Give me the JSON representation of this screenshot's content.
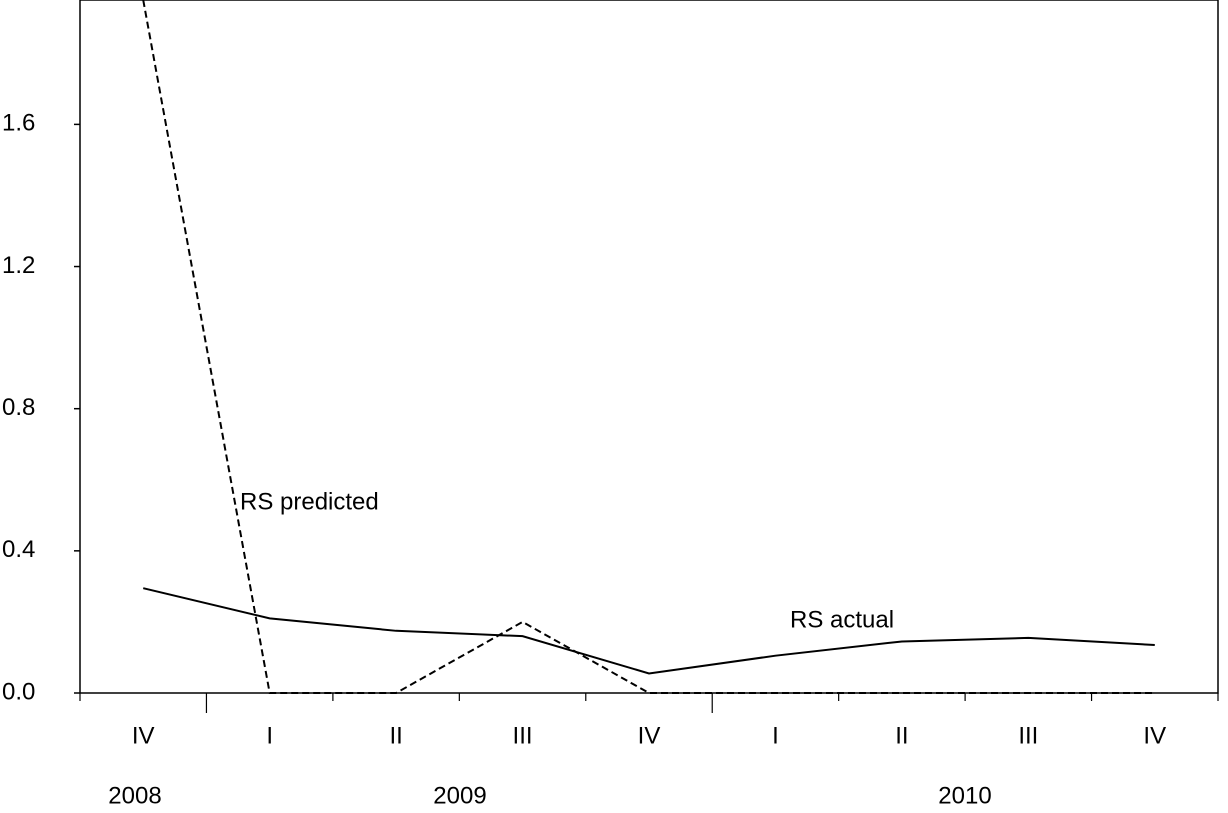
{
  "chart_data": {
    "type": "line",
    "categories": [
      "IV",
      "I",
      "II",
      "III",
      "IV",
      "I",
      "II",
      "III",
      "IV"
    ],
    "years": [
      "2008",
      "2009",
      "2010"
    ],
    "series": [
      {
        "name": "RS actual",
        "color": "#000000",
        "line_style": "solid",
        "values": [
          0.295,
          0.21,
          0.175,
          0.16,
          0.055,
          0.105,
          0.145,
          0.155,
          0.135
        ]
      },
      {
        "name": "RS predicted",
        "color": "#000000",
        "line_style": "dashed",
        "values": [
          1.95,
          0,
          0,
          0.2,
          0,
          0,
          0,
          0,
          0
        ]
      }
    ],
    "annotations": [
      "RS predicted",
      "RS actual"
    ],
    "ylim": [
      0,
      1.95
    ],
    "yticks": [
      {
        "value": 0,
        "label": "0.0"
      },
      0.4,
      0.8,
      1.2,
      1.6
    ],
    "grid": false
  }
}
